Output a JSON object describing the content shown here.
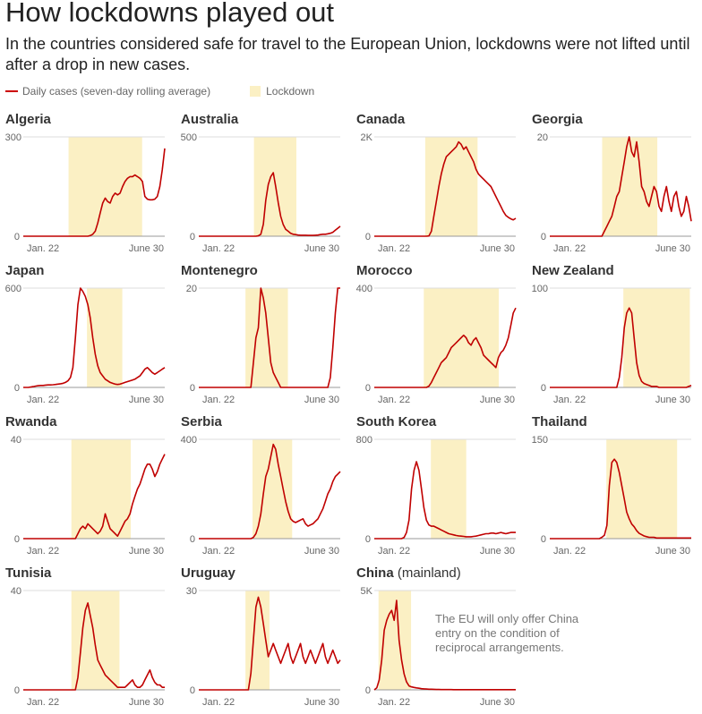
{
  "title": "How lockdowns played out",
  "subtitle": "In the countries considered safe for travel to the European Union, lockdowns were not lifted until after a drop in new cases.",
  "legend": {
    "series_label": "Daily cases (seven-day rolling average)",
    "lockdown_label": "Lockdown"
  },
  "note": "The EU will only offer China entry on the condition of reciprocal arrangements.",
  "colors": {
    "line": "#c00000",
    "lockdown": "#fbf0c4",
    "axis": "#999999",
    "grid": "#dddddd"
  },
  "chart_data": [
    {
      "type": "line",
      "title": "Algeria",
      "x_start": "Jan. 22",
      "x_end": "June 30",
      "ymax_label": "300",
      "ylim": [
        0,
        300
      ],
      "lockdown": [
        0.32,
        0.84
      ],
      "y": [
        0,
        0,
        0,
        0,
        0,
        0,
        0,
        0,
        0,
        0,
        0,
        0,
        0,
        0,
        0,
        0,
        0,
        0,
        0,
        0,
        0,
        0,
        0,
        0,
        0,
        0,
        0,
        2,
        6,
        15,
        40,
        70,
        100,
        115,
        105,
        100,
        120,
        130,
        125,
        130,
        150,
        165,
        175,
        180,
        180,
        185,
        180,
        175,
        165,
        120,
        112,
        110,
        110,
        112,
        120,
        150,
        200,
        265
      ]
    },
    {
      "type": "line",
      "title": "Australia",
      "x_start": "Jan. 22",
      "x_end": "June 30",
      "ymax_label": "500",
      "ylim": [
        0,
        500
      ],
      "lockdown": [
        0.39,
        0.69
      ],
      "y": [
        0,
        0,
        0,
        0,
        0,
        0,
        0,
        0,
        0,
        0,
        0,
        0,
        0,
        0,
        0,
        0,
        0,
        0,
        0,
        0,
        0,
        0,
        0,
        0,
        2,
        10,
        60,
        180,
        260,
        300,
        320,
        250,
        170,
        100,
        60,
        35,
        25,
        15,
        10,
        8,
        6,
        5,
        5,
        5,
        4,
        4,
        4,
        5,
        6,
        8,
        10,
        10,
        12,
        15,
        20,
        30,
        40,
        50
      ]
    },
    {
      "type": "line",
      "title": "Canada",
      "x_start": "Jan. 22",
      "x_end": "June 30",
      "ymax_label": "2K",
      "ylim": [
        0,
        2000
      ],
      "lockdown": [
        0.36,
        0.73
      ],
      "y": [
        0,
        0,
        0,
        0,
        0,
        0,
        0,
        0,
        0,
        0,
        0,
        0,
        0,
        0,
        0,
        0,
        0,
        0,
        0,
        0,
        0,
        0,
        5,
        100,
        400,
        700,
        1000,
        1250,
        1450,
        1600,
        1650,
        1700,
        1750,
        1800,
        1900,
        1850,
        1750,
        1800,
        1700,
        1600,
        1500,
        1350,
        1250,
        1200,
        1150,
        1100,
        1050,
        1000,
        900,
        800,
        700,
        600,
        500,
        420,
        380,
        350,
        330,
        360
      ]
    },
    {
      "type": "line",
      "title": "Georgia",
      "x_start": "Jan. 22",
      "x_end": "June 30",
      "ymax_label": "20",
      "ylim": [
        0,
        20
      ],
      "lockdown": [
        0.37,
        0.76
      ],
      "y": [
        0,
        0,
        0,
        0,
        0,
        0,
        0,
        0,
        0,
        0,
        0,
        0,
        0,
        0,
        0,
        0,
        0,
        0,
        0,
        0,
        0,
        0,
        1,
        2,
        3,
        4,
        6,
        8,
        9,
        12,
        15,
        18,
        20,
        17,
        16,
        19,
        15,
        10,
        9,
        7,
        6,
        8,
        10,
        9,
        6,
        5,
        8,
        10,
        7,
        5,
        8,
        9,
        6,
        4,
        5,
        8,
        6,
        3
      ]
    },
    {
      "type": "line",
      "title": "Japan",
      "x_start": "Jan. 22",
      "x_end": "June 30",
      "ymax_label": "600",
      "ylim": [
        0,
        600
      ],
      "lockdown": [
        0.45,
        0.7
      ],
      "y": [
        0,
        0,
        0,
        2,
        5,
        8,
        10,
        12,
        12,
        14,
        15,
        15,
        16,
        18,
        20,
        22,
        25,
        30,
        40,
        60,
        120,
        300,
        500,
        600,
        580,
        550,
        500,
        420,
        300,
        200,
        130,
        90,
        70,
        50,
        40,
        30,
        25,
        20,
        18,
        20,
        25,
        30,
        35,
        40,
        45,
        50,
        60,
        70,
        90,
        110,
        120,
        105,
        90,
        80,
        90,
        100,
        110,
        120
      ]
    },
    {
      "type": "line",
      "title": "Montenegro",
      "x_start": "Jan. 22",
      "x_end": "June 30",
      "ymax_label": "20",
      "ylim": [
        0,
        20
      ],
      "lockdown": [
        0.33,
        0.63
      ],
      "y": [
        0,
        0,
        0,
        0,
        0,
        0,
        0,
        0,
        0,
        0,
        0,
        0,
        0,
        0,
        0,
        0,
        0,
        0,
        0,
        0,
        0,
        0,
        5,
        10,
        12,
        20,
        18,
        15,
        10,
        5,
        3,
        2,
        1,
        0,
        0,
        0,
        0,
        0,
        0,
        0,
        0,
        0,
        0,
        0,
        0,
        0,
        0,
        0,
        0,
        0,
        0,
        0,
        0,
        2,
        8,
        15,
        20,
        20
      ]
    },
    {
      "type": "line",
      "title": "Morocco",
      "x_start": "Jan. 22",
      "x_end": "June 30",
      "ymax_label": "400",
      "ylim": [
        0,
        400
      ],
      "lockdown": [
        0.35,
        0.88
      ],
      "y": [
        0,
        0,
        0,
        0,
        0,
        0,
        0,
        0,
        0,
        0,
        0,
        0,
        0,
        0,
        0,
        0,
        0,
        0,
        0,
        0,
        0,
        0,
        5,
        20,
        40,
        60,
        80,
        100,
        110,
        120,
        140,
        160,
        170,
        180,
        190,
        200,
        210,
        200,
        180,
        170,
        190,
        200,
        180,
        160,
        130,
        120,
        110,
        100,
        90,
        80,
        120,
        140,
        150,
        170,
        200,
        250,
        300,
        320
      ]
    },
    {
      "type": "line",
      "title": "New Zealand",
      "x_start": "Jan. 22",
      "x_end": "June 30",
      "ymax_label": "100",
      "ylim": [
        0,
        100
      ],
      "lockdown": [
        0.52,
        0.99
      ],
      "y": [
        0,
        0,
        0,
        0,
        0,
        0,
        0,
        0,
        0,
        0,
        0,
        0,
        0,
        0,
        0,
        0,
        0,
        0,
        0,
        0,
        0,
        0,
        0,
        0,
        0,
        0,
        0,
        0,
        10,
        30,
        60,
        75,
        80,
        75,
        50,
        25,
        12,
        6,
        4,
        3,
        2,
        1,
        1,
        1,
        0,
        0,
        0,
        0,
        0,
        0,
        0,
        0,
        0,
        0,
        0,
        0,
        1,
        2
      ]
    },
    {
      "type": "line",
      "title": "Rwanda",
      "x_start": "Jan. 22",
      "x_end": "June 30",
      "ymax_label": "40",
      "ylim": [
        0,
        40
      ],
      "lockdown": [
        0.34,
        0.76
      ],
      "y": [
        0,
        0,
        0,
        0,
        0,
        0,
        0,
        0,
        0,
        0,
        0,
        0,
        0,
        0,
        0,
        0,
        0,
        0,
        0,
        0,
        0,
        0,
        2,
        4,
        5,
        4,
        6,
        5,
        4,
        3,
        2,
        3,
        5,
        10,
        7,
        4,
        3,
        2,
        1,
        3,
        5,
        7,
        8,
        10,
        14,
        17,
        20,
        22,
        25,
        28,
        30,
        30,
        28,
        25,
        27,
        30,
        32,
        34
      ]
    },
    {
      "type": "line",
      "title": "Serbia",
      "x_start": "Jan. 22",
      "x_end": "June 30",
      "ymax_label": "400",
      "ylim": [
        0,
        400
      ],
      "lockdown": [
        0.38,
        0.66
      ],
      "y": [
        0,
        0,
        0,
        0,
        0,
        0,
        0,
        0,
        0,
        0,
        0,
        0,
        0,
        0,
        0,
        0,
        0,
        0,
        0,
        0,
        0,
        0,
        5,
        20,
        50,
        100,
        180,
        250,
        280,
        330,
        380,
        360,
        300,
        250,
        200,
        150,
        110,
        80,
        70,
        65,
        70,
        75,
        80,
        60,
        50,
        55,
        60,
        70,
        80,
        100,
        120,
        150,
        180,
        200,
        230,
        250,
        260,
        270
      ]
    },
    {
      "type": "line",
      "title": "South Korea",
      "x_start": "Jan. 22",
      "x_end": "June 30",
      "ymax_label": "800",
      "ylim": [
        0,
        800
      ],
      "lockdown": [
        0.4,
        0.65
      ],
      "y": [
        0,
        0,
        0,
        0,
        0,
        0,
        0,
        0,
        0,
        0,
        0,
        0,
        10,
        50,
        150,
        400,
        550,
        620,
        550,
        400,
        250,
        150,
        110,
        100,
        100,
        90,
        80,
        70,
        60,
        50,
        40,
        35,
        30,
        25,
        22,
        20,
        18,
        15,
        15,
        15,
        18,
        20,
        25,
        30,
        35,
        40,
        40,
        45,
        45,
        40,
        45,
        50,
        45,
        40,
        45,
        50,
        50,
        50
      ]
    },
    {
      "type": "line",
      "title": "Thailand",
      "x_start": "Jan. 22",
      "x_end": "June 30",
      "ymax_label": "150",
      "ylim": [
        0,
        150
      ],
      "lockdown": [
        0.4,
        0.9
      ],
      "y": [
        0,
        0,
        0,
        0,
        0,
        0,
        0,
        0,
        0,
        0,
        0,
        0,
        0,
        0,
        0,
        0,
        0,
        0,
        0,
        0,
        0,
        2,
        5,
        20,
        80,
        115,
        120,
        115,
        100,
        80,
        60,
        40,
        30,
        22,
        18,
        12,
        8,
        6,
        4,
        3,
        2,
        2,
        2,
        1,
        1,
        1,
        1,
        1,
        1,
        1,
        1,
        1,
        1,
        1,
        1,
        1,
        1,
        1
      ]
    },
    {
      "type": "line",
      "title": "Tunisia",
      "x_start": "Jan. 22",
      "x_end": "June 30",
      "ymax_label": "40",
      "ylim": [
        0,
        40
      ],
      "lockdown": [
        0.34,
        0.68
      ],
      "y": [
        0,
        0,
        0,
        0,
        0,
        0,
        0,
        0,
        0,
        0,
        0,
        0,
        0,
        0,
        0,
        0,
        0,
        0,
        0,
        0,
        0,
        0,
        5,
        15,
        25,
        32,
        35,
        30,
        25,
        18,
        12,
        10,
        8,
        6,
        5,
        4,
        3,
        2,
        1,
        1,
        1,
        1,
        2,
        3,
        4,
        2,
        1,
        1,
        2,
        4,
        6,
        8,
        5,
        3,
        2,
        2,
        1,
        1
      ]
    },
    {
      "type": "line",
      "title": "Uruguay",
      "x_start": "Jan. 22",
      "x_end": "June 30",
      "ymax_label": "30",
      "ylim": [
        0,
        30
      ],
      "lockdown": [
        0.33,
        0.5
      ],
      "y": [
        0,
        0,
        0,
        0,
        0,
        0,
        0,
        0,
        0,
        0,
        0,
        0,
        0,
        0,
        0,
        0,
        0,
        0,
        0,
        0,
        0,
        5,
        15,
        25,
        28,
        25,
        20,
        15,
        10,
        12,
        14,
        12,
        10,
        8,
        10,
        12,
        14,
        10,
        8,
        10,
        12,
        14,
        10,
        8,
        10,
        12,
        10,
        8,
        10,
        12,
        14,
        10,
        8,
        10,
        12,
        10,
        8,
        9
      ]
    },
    {
      "type": "line",
      "title": "China",
      "title_suffix": "(mainland)",
      "x_start": "Jan. 22",
      "x_end": "June 30",
      "ymax_label": "5K",
      "ylim": [
        0,
        5000
      ],
      "lockdown": [
        0.03,
        0.26
      ],
      "y": [
        0,
        100,
        500,
        1500,
        3000,
        3500,
        3800,
        4000,
        3500,
        4500,
        2500,
        1500,
        800,
        400,
        200,
        150,
        120,
        100,
        80,
        60,
        50,
        40,
        30,
        30,
        25,
        20,
        20,
        15,
        15,
        15,
        15,
        15,
        10,
        10,
        10,
        10,
        10,
        10,
        10,
        10,
        10,
        10,
        10,
        10,
        10,
        10,
        10,
        10,
        10,
        10,
        10,
        10,
        10,
        10,
        10,
        10,
        10,
        10
      ]
    }
  ]
}
